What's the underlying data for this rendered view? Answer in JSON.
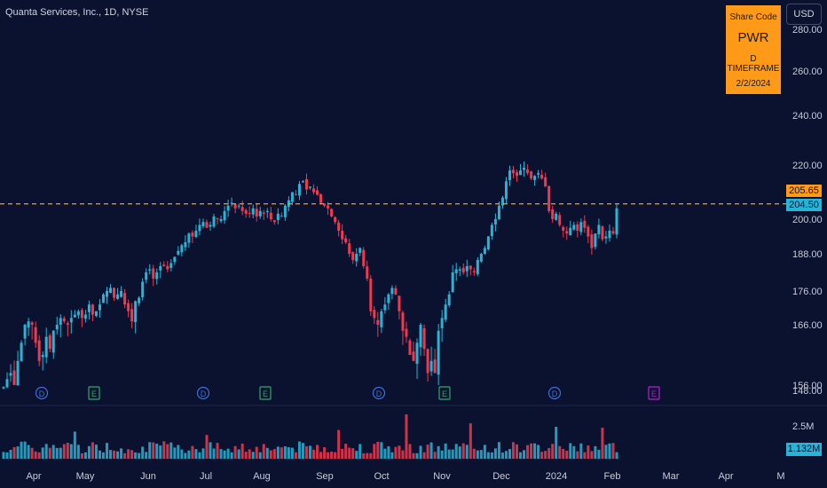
{
  "header": {
    "symbol_title": "Quanta Services, Inc., 1D, NYSE",
    "currency_button": "USD"
  },
  "info_box": {
    "label": "Share Code",
    "ticker": "PWR",
    "timeframe": "D TIMEFRAME",
    "date": "2/2/2024"
  },
  "price_tags": {
    "line_price": "205.65",
    "last_price": "204.50"
  },
  "volume_tag": "1.132M",
  "colors": {
    "background": "#0b1230",
    "up": "#26b5d6",
    "down": "#f0394e",
    "line": "#ff9a19",
    "div": "#3f6fd6",
    "earn": "#2fa86b",
    "earn_future": "#b51fd1"
  },
  "chart_data": {
    "type": "candlestick",
    "title": "Quanta Services, Inc., 1D, NYSE",
    "y_ticks": [
      280.0,
      260.0,
      240.0,
      220.0,
      200.0,
      188.0,
      176.0,
      166.0,
      156.0,
      148.0
    ],
    "x_ticks": [
      "Apr",
      "May",
      "Jun",
      "Jul",
      "Aug",
      "Sep",
      "Oct",
      "Nov",
      "Dec",
      "2024",
      "Feb",
      "Mar",
      "Apr",
      "M"
    ],
    "horizontal_line": 205.65,
    "last_close": 204.5,
    "volume_ticks": [
      "2.5M"
    ],
    "events": [
      {
        "type": "D",
        "month": "Apr"
      },
      {
        "type": "E",
        "month": "May"
      },
      {
        "type": "D",
        "month": "Jul"
      },
      {
        "type": "E",
        "month": "Aug"
      },
      {
        "type": "D",
        "month": "Oct"
      },
      {
        "type": "E",
        "month": "Nov"
      },
      {
        "type": "D",
        "month": "Jan"
      },
      {
        "type": "E",
        "month": "Feb-Mar"
      }
    ],
    "closes": [
      153,
      157,
      158,
      156,
      160,
      163,
      166,
      167,
      166,
      163,
      160,
      161,
      164,
      162,
      165,
      166,
      168,
      167,
      166,
      168,
      169,
      170,
      168,
      169,
      172,
      169,
      170,
      172,
      175,
      176,
      177,
      174,
      175,
      176,
      172,
      170,
      167,
      173,
      174,
      179,
      182,
      183,
      180,
      182,
      184,
      184,
      183,
      185,
      187,
      189,
      191,
      192,
      195,
      194,
      196,
      198,
      199,
      197,
      198,
      201,
      200,
      200,
      203,
      205,
      206,
      204,
      205,
      203,
      202,
      202,
      204,
      201,
      203,
      202,
      203,
      200,
      199,
      202,
      201,
      205,
      207,
      210,
      209,
      213,
      214,
      211,
      212,
      210,
      209,
      206,
      205,
      204,
      201,
      199,
      196,
      193,
      192,
      188,
      186,
      188,
      190,
      184,
      180,
      170,
      168,
      166,
      170,
      172,
      175,
      177,
      175,
      170,
      165,
      164,
      161,
      160,
      163,
      166,
      162,
      158,
      160,
      158,
      165,
      168,
      172,
      175,
      182,
      183,
      183,
      182,
      184,
      183,
      182,
      186,
      188,
      190,
      194,
      198,
      200,
      205,
      208,
      214,
      218,
      217,
      216,
      218,
      219,
      217,
      215,
      216,
      217,
      215,
      212,
      203,
      200,
      202,
      198,
      196,
      195,
      197,
      198,
      196,
      199,
      197,
      194,
      190,
      195,
      198,
      193,
      194,
      196,
      195,
      204
    ]
  }
}
